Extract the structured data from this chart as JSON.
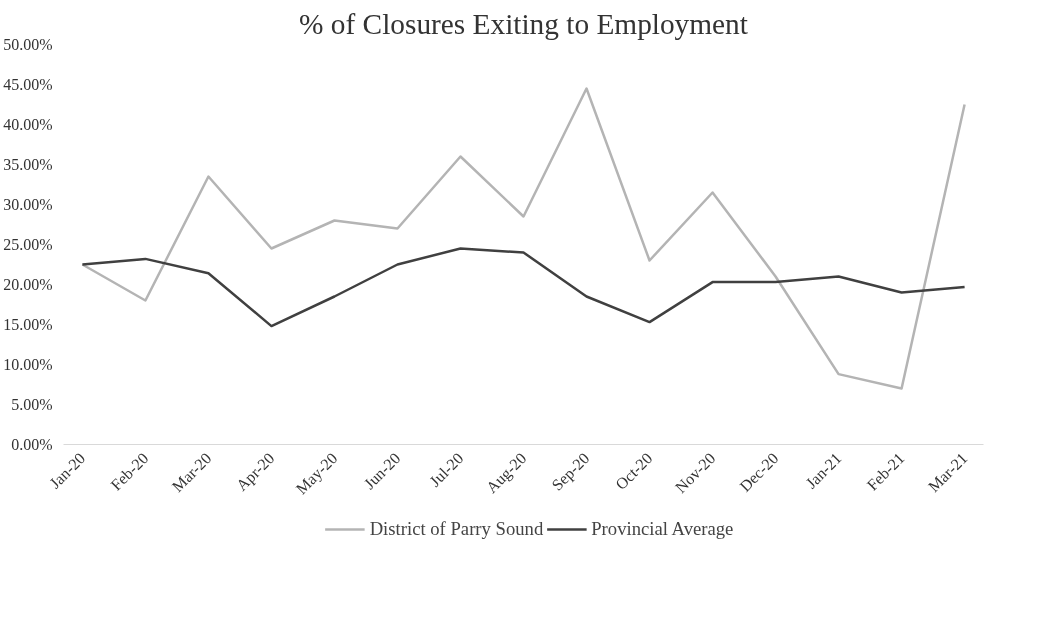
{
  "chart_data": {
    "type": "line",
    "title": "% of Closures Exiting to Employment",
    "categories": [
      "Jan-20",
      "Feb-20",
      "Mar-20",
      "Apr-20",
      "May-20",
      "Jun-20",
      "Jul-20",
      "Aug-20",
      "Sep-20",
      "Oct-20",
      "Nov-20",
      "Dec-20",
      "Jan-21",
      "Feb-21",
      "Mar-21"
    ],
    "series": [
      {
        "name": "District of Parry Sound",
        "color": "#b4b4b4",
        "values": [
          22.5,
          18.0,
          33.5,
          24.5,
          28.0,
          27.0,
          36.0,
          28.5,
          44.5,
          23.0,
          31.5,
          21.0,
          8.8,
          7.0,
          42.5
        ]
      },
      {
        "name": "Provincial Average",
        "color": "#404040",
        "values": [
          22.5,
          23.2,
          21.4,
          14.8,
          18.5,
          22.5,
          24.5,
          24.0,
          18.5,
          15.3,
          20.3,
          20.3,
          21.0,
          19.0,
          19.7
        ]
      }
    ],
    "ylim": [
      0,
      50
    ],
    "yticks": [
      {
        "value": 0,
        "label": "0.00%"
      },
      {
        "value": 5,
        "label": "5.00%"
      },
      {
        "value": 10,
        "label": "10.00%"
      },
      {
        "value": 15,
        "label": "15.00%"
      },
      {
        "value": 20,
        "label": "20.00%"
      },
      {
        "value": 25,
        "label": "25.00%"
      },
      {
        "value": 30,
        "label": "30.00%"
      },
      {
        "value": 35,
        "label": "35.00%"
      },
      {
        "value": 40,
        "label": "40.00%"
      },
      {
        "value": 45,
        "label": "45.00%"
      },
      {
        "value": 50,
        "label": "50.00%"
      }
    ],
    "grid": false,
    "legend": "bottom",
    "marker": "none",
    "line_style": "solid"
  }
}
